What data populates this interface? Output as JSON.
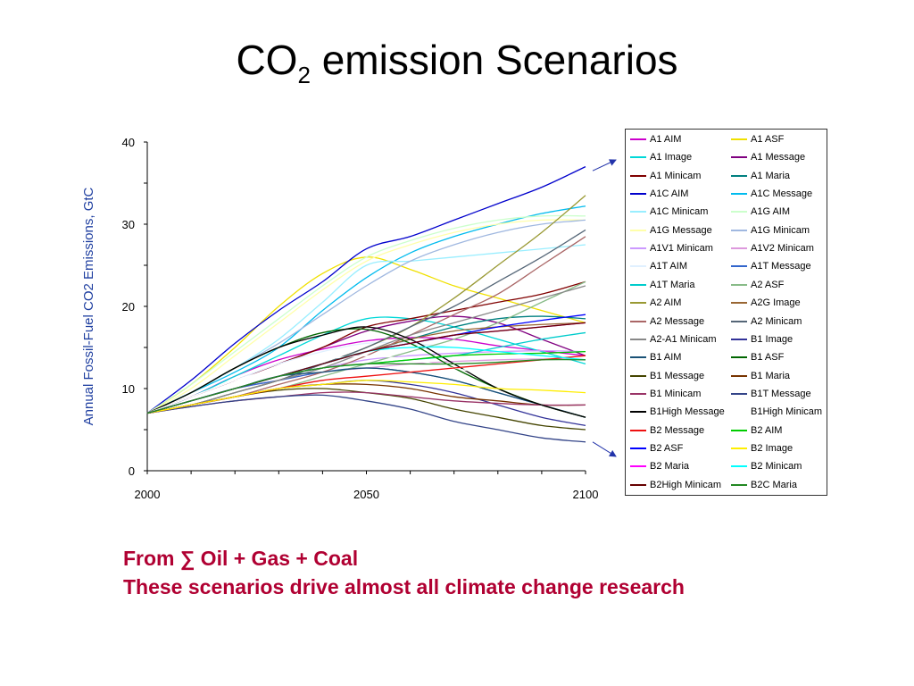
{
  "title": {
    "main": "CO",
    "sub": "2",
    "rest": " emission Scenarios"
  },
  "footer": {
    "line1": "From  ∑ Oil + Gas + Coal",
    "line2": "These scenarios drive almost all climate change research"
  },
  "chart_data": {
    "type": "line",
    "title": "",
    "xlabel": "",
    "ylabel": "Annual Fossil-Fuel CO2 Emissions, GtC",
    "xlim": [
      2000,
      2100
    ],
    "ylim": [
      0,
      40
    ],
    "x_ticks": [
      2000,
      2050,
      2100
    ],
    "y_ticks": [
      0,
      10,
      20,
      30,
      40
    ],
    "x": [
      2000,
      2010,
      2020,
      2030,
      2040,
      2050,
      2060,
      2070,
      2080,
      2090,
      2100
    ],
    "grid": false,
    "legend_position": "right",
    "series": [
      {
        "name": "A1 AIM",
        "color": "#cc00cc",
        "values": [
          7,
          9,
          11.5,
          13.5,
          14.8,
          15.8,
          16.2,
          16,
          15.2,
          14.6,
          14
        ]
      },
      {
        "name": "A1 ASF",
        "color": "#f0e000",
        "values": [
          7,
          10.5,
          15,
          20,
          24,
          26,
          24.5,
          22.5,
          21,
          19.5,
          18
        ]
      },
      {
        "name": "A1 Image",
        "color": "#00d8d8",
        "values": [
          7,
          9,
          11.5,
          14,
          16.5,
          18.5,
          18.5,
          17.5,
          16,
          14.5,
          13
        ]
      },
      {
        "name": "A1 Message",
        "color": "#800080",
        "values": [
          7,
          9,
          11,
          13,
          15,
          17,
          18.2,
          18.8,
          18,
          16,
          14
        ]
      },
      {
        "name": "A1 Minicam",
        "color": "#800000",
        "values": [
          7,
          9,
          11,
          13,
          15,
          17.5,
          18.5,
          19.5,
          20.5,
          21.5,
          23
        ]
      },
      {
        "name": "A1 Maria",
        "color": "#008080",
        "values": [
          7,
          8.5,
          10,
          11.5,
          13,
          14.5,
          16,
          17.5,
          18.5,
          18.8,
          18.5
        ]
      },
      {
        "name": "A1C AIM",
        "color": "#0000cc",
        "values": [
          7,
          11,
          15.5,
          19.5,
          23,
          27,
          28.5,
          30.5,
          32.5,
          34.5,
          37
        ]
      },
      {
        "name": "A1C Message",
        "color": "#00bbee",
        "values": [
          7,
          9.5,
          12,
          15,
          19.5,
          23.5,
          26.5,
          28.5,
          30,
          31.3,
          32.2
        ]
      },
      {
        "name": "A1C Minicam",
        "color": "#99eeff",
        "values": [
          7,
          9.5,
          12.5,
          16,
          20.5,
          25,
          25.5,
          26,
          26.5,
          27,
          27.5
        ]
      },
      {
        "name": "A1G AIM",
        "color": "#ccffcc",
        "values": [
          7,
          10.5,
          14.5,
          18.5,
          22.5,
          26,
          28,
          29.5,
          30.5,
          31,
          31
        ]
      },
      {
        "name": "A1G Message",
        "color": "#ffffaa",
        "values": [
          7,
          10,
          14,
          18,
          22,
          25.5,
          27.5,
          29,
          30,
          30.5,
          30.5
        ]
      },
      {
        "name": "A1G Minicam",
        "color": "#a0b8e0",
        "values": [
          7,
          9.5,
          12.5,
          15.5,
          19,
          22.5,
          25.5,
          27.5,
          29,
          30,
          30.5
        ]
      },
      {
        "name": "A1V1 Minicam",
        "color": "#cc99ff",
        "values": [
          7,
          8.5,
          10,
          11.5,
          12.5,
          13.5,
          14,
          14.3,
          14.5,
          14.6,
          14.5
        ]
      },
      {
        "name": "A1V2 Minicam",
        "color": "#dd99dd",
        "values": [
          7,
          8.5,
          10,
          11,
          12,
          12.5,
          13,
          13.3,
          13.5,
          13.6,
          13.5
        ]
      },
      {
        "name": "A1T AIM",
        "color": "#e0f0ff",
        "values": [
          7,
          9,
          11,
          13,
          14.5,
          15.5,
          15.5,
          15,
          14.5,
          14,
          13.5
        ]
      },
      {
        "name": "A1T Message",
        "color": "#3366cc",
        "values": [
          7,
          8.5,
          10,
          11,
          12,
          12.5,
          12,
          11,
          9.5,
          8,
          6.5
        ]
      },
      {
        "name": "A1T Maria",
        "color": "#00cccc",
        "values": [
          7,
          8.5,
          10,
          11.5,
          12.5,
          13,
          13.5,
          14,
          15,
          16,
          16.8
        ]
      },
      {
        "name": "A2 ASF",
        "color": "#88bb88",
        "values": [
          7,
          8,
          9,
          10,
          11.5,
          13,
          14.5,
          16,
          18,
          20.5,
          23
        ]
      },
      {
        "name": "A2 AIM",
        "color": "#999933",
        "values": [
          7,
          8,
          9.5,
          11,
          13,
          15,
          17.5,
          21,
          25,
          29,
          33.5
        ]
      },
      {
        "name": "A2G Image",
        "color": "#996633",
        "values": [
          7,
          8.5,
          10,
          11.5,
          13,
          14.5,
          16,
          17,
          17.5,
          17.8,
          18
        ]
      },
      {
        "name": "A2 Message",
        "color": "#aa6666",
        "values": [
          7,
          8,
          9,
          10.5,
          12,
          14,
          16.5,
          19,
          21.5,
          25,
          28.5
        ]
      },
      {
        "name": "A2 Minicam",
        "color": "#556677",
        "values": [
          7,
          8,
          9.5,
          11,
          13,
          15,
          17.5,
          20,
          23,
          26,
          29.3
        ]
      },
      {
        "name": "A2-A1 Minicam",
        "color": "#888888",
        "values": [
          7,
          8,
          9.5,
          11,
          12.5,
          14.5,
          16.5,
          18,
          19.5,
          21,
          22.5
        ]
      },
      {
        "name": "B1 Image",
        "color": "#333399",
        "values": [
          7,
          8,
          9,
          10,
          10.5,
          11,
          10.5,
          9.5,
          8,
          6.5,
          5.5
        ]
      },
      {
        "name": "B1 AIM",
        "color": "#1a5276",
        "values": [
          7,
          8.5,
          10,
          11.5,
          12,
          12.5,
          12,
          11,
          9.5,
          8,
          6.5
        ]
      },
      {
        "name": "B1 ASF",
        "color": "#006600",
        "values": [
          7,
          9.5,
          12.5,
          15,
          16.8,
          17.2,
          15.5,
          12.5,
          10,
          8,
          6.5
        ]
      },
      {
        "name": "B1 Message",
        "color": "#444400",
        "values": [
          7,
          8,
          9,
          9.8,
          10,
          9.5,
          8.8,
          7.5,
          6.5,
          5.5,
          5
        ]
      },
      {
        "name": "B1 Maria",
        "color": "#773300",
        "values": [
          7,
          8,
          9,
          10,
          10.5,
          10.5,
          10,
          9,
          8.5,
          8,
          8
        ]
      },
      {
        "name": "B1 Minicam",
        "color": "#993366",
        "values": [
          7,
          7.8,
          8.5,
          9,
          9.5,
          9.5,
          9,
          8.5,
          8.2,
          8,
          8
        ]
      },
      {
        "name": "B1T Message",
        "color": "#334488",
        "values": [
          7,
          7.8,
          8.5,
          9,
          9.2,
          8.5,
          7.5,
          6,
          5,
          4,
          3.5
        ]
      },
      {
        "name": "B1High Message",
        "color": "#000000",
        "values": [
          7,
          9.5,
          12.5,
          15,
          16.5,
          17.5,
          16,
          13,
          10,
          8,
          6.5
        ]
      },
      {
        "name": "B1High Minicam",
        "color": "#ffffff",
        "values": [
          7,
          9,
          11,
          12.5,
          13.5,
          14,
          13.5,
          12.5,
          11.5,
          10.5,
          10
        ]
      },
      {
        "name": "B2 Message",
        "color": "#ee1111",
        "values": [
          7,
          8,
          9,
          10,
          11,
          11.5,
          12,
          12.5,
          13,
          13.5,
          14
        ]
      },
      {
        "name": "B2 AIM",
        "color": "#00cc00",
        "values": [
          7,
          8.5,
          10,
          11.5,
          12.5,
          13,
          13.5,
          14,
          14.2,
          14.3,
          14.5
        ]
      },
      {
        "name": "B2 ASF",
        "color": "#0000ff",
        "values": [
          7,
          8.5,
          10,
          11.5,
          13,
          14.5,
          15.5,
          16.5,
          17.5,
          18.3,
          19
        ]
      },
      {
        "name": "B2 Image",
        "color": "#ffee00",
        "values": [
          7,
          8,
          9,
          10,
          10.5,
          11,
          10.8,
          10.5,
          10,
          9.8,
          9.5
        ]
      },
      {
        "name": "B2 Maria",
        "color": "#ff00ff",
        "values": [
          7,
          8.5,
          10,
          11.5,
          13,
          14.5,
          15.5,
          16.5,
          17,
          17.5,
          18
        ]
      },
      {
        "name": "B2 Minicam",
        "color": "#00ffff",
        "values": [
          7,
          8.5,
          10,
          11.5,
          13,
          14.5,
          15,
          15,
          14.5,
          14,
          13.5
        ]
      },
      {
        "name": "B2High Minicam",
        "color": "#660000",
        "values": [
          7,
          8.5,
          10,
          11.5,
          13,
          14.5,
          15.5,
          16.5,
          17,
          17.5,
          18
        ]
      },
      {
        "name": "B2C Maria",
        "color": "#228822",
        "values": [
          7,
          8.5,
          10,
          11.5,
          12.5,
          13,
          13,
          13,
          13.2,
          13.5,
          13.5
        ]
      }
    ]
  }
}
